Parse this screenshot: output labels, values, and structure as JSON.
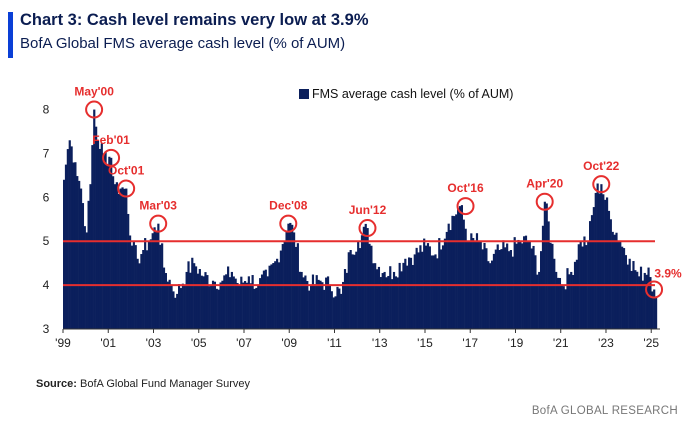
{
  "header": {
    "title": "Chart 3: Cash level remains very low at 3.9%",
    "subtitle": "BofA Global FMS average cash level (% of AUM)"
  },
  "footer": {
    "source_label": "Source:",
    "source_text": " BofA Global Fund Manager Survey",
    "brand": "BofA GLOBAL RESEARCH"
  },
  "colors": {
    "bar": "#0b1f5c",
    "threshold": "#e62e2e",
    "accent": "#0a3fd6"
  },
  "chart_data": {
    "type": "bar",
    "legend": "FMS average cash level (% of AUM)",
    "legend_position": "top-right",
    "x_start": "1999-01",
    "x_end": "2025-03",
    "ylim": [
      3,
      8.4
    ],
    "y_ticks": [
      "3",
      "4",
      "5",
      "6",
      "7",
      "8"
    ],
    "x_ticks": [
      "'99",
      "'01",
      "'03",
      "'05",
      "'07",
      "'09",
      "'11",
      "'13",
      "'15",
      "'17",
      "'19",
      "'21",
      "'23",
      "'25"
    ],
    "thresholds": [
      5.0,
      4.0
    ],
    "series_points": [
      [
        "1999-01",
        6.4
      ],
      [
        "1999-03",
        7.1
      ],
      [
        "1999-04",
        7.3
      ],
      [
        "1999-07",
        6.8
      ],
      [
        "1999-10",
        6.2
      ],
      [
        "2000-01",
        5.2
      ],
      [
        "2000-03",
        6.3
      ],
      [
        "2000-05",
        8.0
      ],
      [
        "2000-07",
        7.3
      ],
      [
        "2000-10",
        7.0
      ],
      [
        "2001-02",
        6.9
      ],
      [
        "2001-04",
        6.3
      ],
      [
        "2001-07",
        6.2
      ],
      [
        "2001-10",
        6.2
      ],
      [
        "2002-01",
        4.9
      ],
      [
        "2002-04",
        4.6
      ],
      [
        "2002-07",
        4.8
      ],
      [
        "2002-10",
        5.0
      ],
      [
        "2003-03",
        5.4
      ],
      [
        "2003-06",
        4.4
      ],
      [
        "2003-10",
        4.0
      ],
      [
        "2004-01",
        3.8
      ],
      [
        "2004-06",
        4.3
      ],
      [
        "2004-10",
        4.5
      ],
      [
        "2005-03",
        4.2
      ],
      [
        "2005-08",
        4.1
      ],
      [
        "2006-01",
        4.1
      ],
      [
        "2006-06",
        4.3
      ],
      [
        "2006-10",
        4.0
      ],
      [
        "2007-03",
        4.2
      ],
      [
        "2007-08",
        4.0
      ],
      [
        "2008-01",
        4.2
      ],
      [
        "2008-06",
        4.6
      ],
      [
        "2008-12",
        5.4
      ],
      [
        "2009-03",
        5.2
      ],
      [
        "2009-07",
        4.3
      ],
      [
        "2009-12",
        4.0
      ],
      [
        "2010-05",
        4.1
      ],
      [
        "2010-10",
        4.0
      ],
      [
        "2011-04",
        3.8
      ],
      [
        "2011-09",
        4.8
      ],
      [
        "2012-01",
        5.0
      ],
      [
        "2012-06",
        5.3
      ],
      [
        "2012-10",
        4.5
      ],
      [
        "2013-03",
        4.3
      ],
      [
        "2013-08",
        4.3
      ],
      [
        "2014-02",
        4.6
      ],
      [
        "2014-07",
        4.7
      ],
      [
        "2015-01",
        4.9
      ],
      [
        "2015-06",
        4.7
      ],
      [
        "2016-01",
        5.4
      ],
      [
        "2016-07",
        5.8
      ],
      [
        "2016-12",
        5.0
      ],
      [
        "2017-05",
        5.0
      ],
      [
        "2017-11",
        4.5
      ],
      [
        "2018-04",
        4.8
      ],
      [
        "2018-10",
        4.8
      ],
      [
        "2019-03",
        5.0
      ],
      [
        "2019-08",
        5.0
      ],
      [
        "2020-01",
        4.3
      ],
      [
        "2020-04",
        5.9
      ],
      [
        "2020-09",
        4.6
      ],
      [
        "2021-01",
        4.0
      ],
      [
        "2021-06",
        4.3
      ],
      [
        "2021-11",
        5.0
      ],
      [
        "2022-03",
        5.0
      ],
      [
        "2022-07",
        6.1
      ],
      [
        "2022-10",
        6.3
      ],
      [
        "2023-03",
        5.5
      ],
      [
        "2023-08",
        5.0
      ],
      [
        "2024-01",
        4.6
      ],
      [
        "2024-06",
        4.2
      ],
      [
        "2024-11",
        4.4
      ],
      [
        "2025-02",
        3.9
      ]
    ],
    "annotations": [
      {
        "label": "May'00",
        "x": "2000-05",
        "value": 8.0
      },
      {
        "label": "Feb'01",
        "x": "2001-02",
        "value": 6.9
      },
      {
        "label": "Oct'01",
        "x": "2001-10",
        "value": 6.2
      },
      {
        "label": "Mar'03",
        "x": "2003-03",
        "value": 5.4
      },
      {
        "label": "Dec'08",
        "x": "2008-12",
        "value": 5.4
      },
      {
        "label": "Jun'12",
        "x": "2012-06",
        "value": 5.3
      },
      {
        "label": "Oct'16",
        "x": "2016-10",
        "value": 5.8
      },
      {
        "label": "Apr'20",
        "x": "2020-04",
        "value": 5.9
      },
      {
        "label": "Oct'22",
        "x": "2022-10",
        "value": 6.3
      },
      {
        "label": "3.9%",
        "x": "2025-02",
        "value": 3.9
      }
    ]
  }
}
